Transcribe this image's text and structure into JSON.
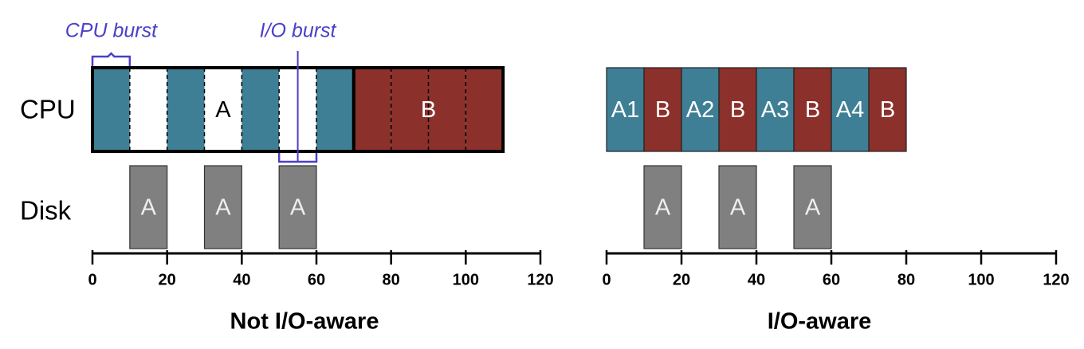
{
  "row_labels": {
    "cpu": "CPU",
    "disk": "Disk"
  },
  "annotation_color": "#4b3fc8",
  "panels": [
    {
      "title": "Not I/O-aware",
      "xlim": [
        0,
        120
      ],
      "xticks": [
        0,
        20,
        40,
        60,
        80,
        100,
        120
      ],
      "cpu": [
        {
          "label": "A",
          "start": 0,
          "end": 70,
          "color": "#3e7f95",
          "label_color": "#000000",
          "slices": [
            {
              "start": 0,
              "end": 10,
              "active": true
            },
            {
              "start": 10,
              "end": 20,
              "active": false
            },
            {
              "start": 20,
              "end": 30,
              "active": true
            },
            {
              "start": 30,
              "end": 40,
              "active": false
            },
            {
              "start": 40,
              "end": 50,
              "active": true
            },
            {
              "start": 50,
              "end": 60,
              "active": false
            },
            {
              "start": 60,
              "end": 70,
              "active": true
            }
          ]
        },
        {
          "label": "B",
          "start": 70,
          "end": 110,
          "color": "#8b302b",
          "label_color": "#ffffff",
          "slices": [
            {
              "start": 70,
              "end": 80,
              "active": true
            },
            {
              "start": 80,
              "end": 90,
              "active": true
            },
            {
              "start": 90,
              "end": 100,
              "active": true
            },
            {
              "start": 100,
              "end": 110,
              "active": true
            }
          ]
        }
      ],
      "disk": [
        {
          "label": "A",
          "start": 10,
          "end": 20
        },
        {
          "label": "A",
          "start": 30,
          "end": 40
        },
        {
          "label": "A",
          "start": 50,
          "end": 60
        }
      ],
      "annotations": [
        {
          "text": "CPU burst",
          "start": 0,
          "end": 10,
          "placement": "above"
        },
        {
          "text": "I/O burst",
          "start": 50,
          "end": 60,
          "placement": "below"
        }
      ]
    },
    {
      "title": "I/O-aware",
      "xlim": [
        0,
        120
      ],
      "xticks": [
        0,
        20,
        40,
        60,
        80,
        100,
        120
      ],
      "cpu": [
        {
          "label": "A1",
          "start": 0,
          "end": 10,
          "color": "#3e7f95",
          "label_color": "#ffffff"
        },
        {
          "label": "B",
          "start": 10,
          "end": 20,
          "color": "#8b302b",
          "label_color": "#ffffff"
        },
        {
          "label": "A2",
          "start": 20,
          "end": 30,
          "color": "#3e7f95",
          "label_color": "#ffffff"
        },
        {
          "label": "B",
          "start": 30,
          "end": 40,
          "color": "#8b302b",
          "label_color": "#ffffff"
        },
        {
          "label": "A3",
          "start": 40,
          "end": 50,
          "color": "#3e7f95",
          "label_color": "#ffffff"
        },
        {
          "label": "B",
          "start": 50,
          "end": 60,
          "color": "#8b302b",
          "label_color": "#ffffff"
        },
        {
          "label": "A4",
          "start": 60,
          "end": 70,
          "color": "#3e7f95",
          "label_color": "#ffffff"
        },
        {
          "label": "B",
          "start": 70,
          "end": 80,
          "color": "#8b302b",
          "label_color": "#ffffff"
        }
      ],
      "disk": [
        {
          "label": "A",
          "start": 10,
          "end": 20
        },
        {
          "label": "A",
          "start": 30,
          "end": 40
        },
        {
          "label": "A",
          "start": 50,
          "end": 60
        }
      ],
      "annotations": []
    }
  ]
}
